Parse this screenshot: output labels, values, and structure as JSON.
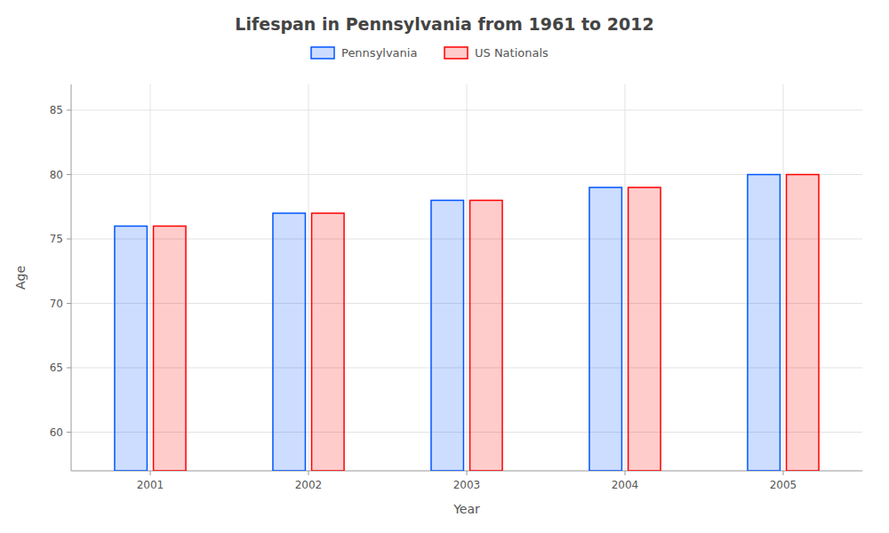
{
  "chart_data": {
    "type": "bar",
    "title": "Lifespan in Pennsylvania from 1961 to 2012",
    "xlabel": "Year",
    "ylabel": "Age",
    "categories": [
      "2001",
      "2002",
      "2003",
      "2004",
      "2005"
    ],
    "series": [
      {
        "name": "Pennsylvania",
        "color": "#0055ff",
        "values": [
          76,
          77,
          78,
          79,
          80
        ]
      },
      {
        "name": "US Nationals",
        "color": "#ff0000",
        "values": [
          76,
          77,
          78,
          79,
          80
        ]
      }
    ],
    "ylim": [
      57,
      87
    ],
    "yticks": [
      60,
      65,
      70,
      75,
      80,
      85
    ],
    "grid": true,
    "legend": "top"
  }
}
